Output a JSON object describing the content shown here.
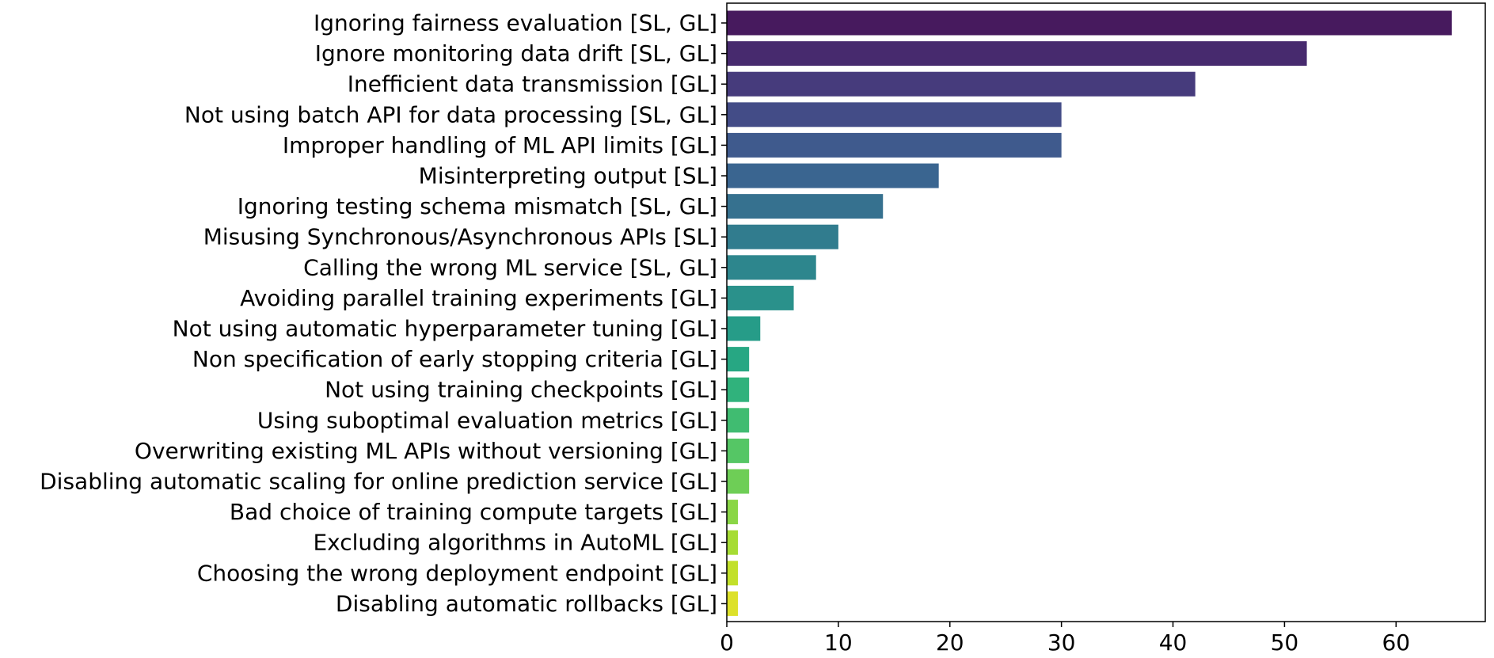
{
  "chart_data": {
    "type": "bar",
    "orientation": "horizontal",
    "categories": [
      "Ignoring fairness evaluation [SL, GL]",
      "Ignore monitoring data drift [SL, GL]",
      "Inefficient data transmission [GL]",
      "Not using batch API for data processing [SL, GL]",
      "Improper handling of ML API limits [GL]",
      "Misinterpreting output [SL]",
      "Ignoring testing schema mismatch [SL, GL]",
      "Misusing Synchronous/Asynchronous APIs [SL]",
      "Calling the wrong ML service [SL, GL]",
      "Avoiding parallel training experiments [GL]",
      "Not using automatic hyperparameter tuning [GL]",
      "Non specification of early stopping criteria [GL]",
      "Not using training checkpoints [GL]",
      "Using suboptimal evaluation metrics [GL]",
      "Overwriting existing ML APIs without versioning [GL]",
      "Disabling automatic scaling for online prediction service [GL]",
      "Bad choice of training compute targets [GL]",
      "Excluding algorithms in AutoML [GL]",
      "Choosing the wrong deployment endpoint [GL]",
      "Disabling automatic rollbacks [GL]"
    ],
    "values": [
      65,
      52,
      42,
      30,
      30,
      19,
      14,
      10,
      8,
      6,
      3,
      2,
      2,
      2,
      2,
      2,
      1,
      1,
      1,
      1
    ],
    "colors": [
      "#471a5e",
      "#472a6e",
      "#463b7c",
      "#434c87",
      "#3f5a8d",
      "#3a6590",
      "#36718f",
      "#317c8e",
      "#2d868d",
      "#2a918b",
      "#269c88",
      "#27a783",
      "#30b27c",
      "#40bc71",
      "#55c665",
      "#6ece56",
      "#8ad646",
      "#a6dc34",
      "#c2e02a",
      "#dde12a"
    ],
    "xlim": [
      0,
      68
    ],
    "xticks": [
      0,
      10,
      20,
      30,
      40,
      50,
      60
    ],
    "xlabel": "",
    "ylabel": "",
    "title": "",
    "grid": false,
    "legend": "none",
    "colormap": "viridis"
  }
}
